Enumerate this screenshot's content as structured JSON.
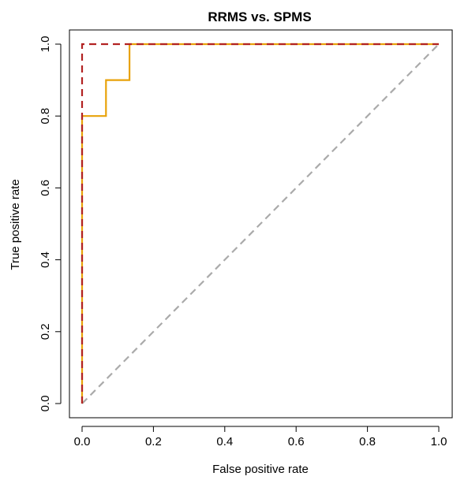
{
  "chart_data": {
    "type": "line",
    "title": "RRMS vs. SPMS",
    "xlabel": "False positive rate",
    "ylabel": "True positive rate",
    "xlim": [
      0,
      1
    ],
    "ylim": [
      0,
      1
    ],
    "x_ticks": [
      "0.0",
      "0.2",
      "0.4",
      "0.6",
      "0.8",
      "1.0"
    ],
    "y_ticks": [
      "0.0",
      "0.2",
      "0.4",
      "0.6",
      "0.8",
      "1.0"
    ],
    "grid": false,
    "legend": "none",
    "series": [
      {
        "style": "dashed",
        "color": "#b22222",
        "x": [
          0,
          0,
          1
        ],
        "y": [
          0,
          1,
          1
        ]
      },
      {
        "style": "solid",
        "color": "#e8a20a",
        "x": [
          0,
          0,
          0.067,
          0.067,
          0.133,
          0.133,
          1
        ],
        "y": [
          0,
          0.8,
          0.8,
          0.9,
          0.9,
          1,
          1
        ]
      },
      {
        "style": "dashed",
        "color": "#aaaaaa",
        "x": [
          0,
          1
        ],
        "y": [
          0,
          1
        ]
      }
    ]
  }
}
